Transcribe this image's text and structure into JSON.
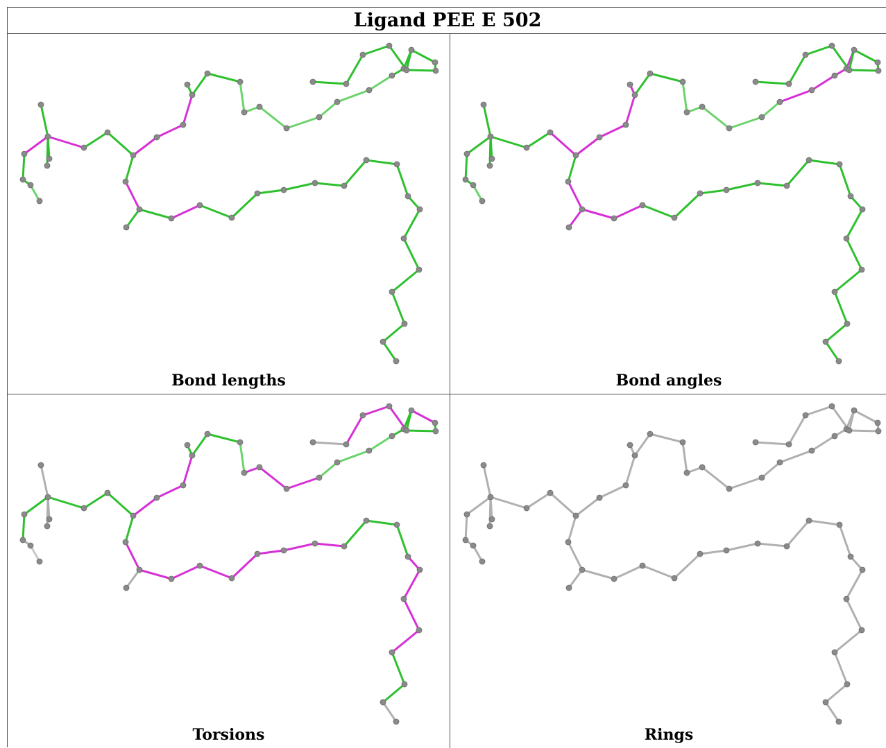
{
  "title": "Ligand PEE E 502",
  "colors": {
    "ok": "#2ec02e",
    "outlier": "#d630d6",
    "neutral": "#b0b0b0",
    "atom": "#8a8a8a"
  },
  "panels": [
    {
      "caption": "Bond lengths",
      "mode": "bond"
    },
    {
      "caption": "Bond angles",
      "mode": "angle"
    },
    {
      "caption": "Torsions",
      "mode": "torsion"
    },
    {
      "caption": "Rings",
      "mode": "rings"
    }
  ]
}
